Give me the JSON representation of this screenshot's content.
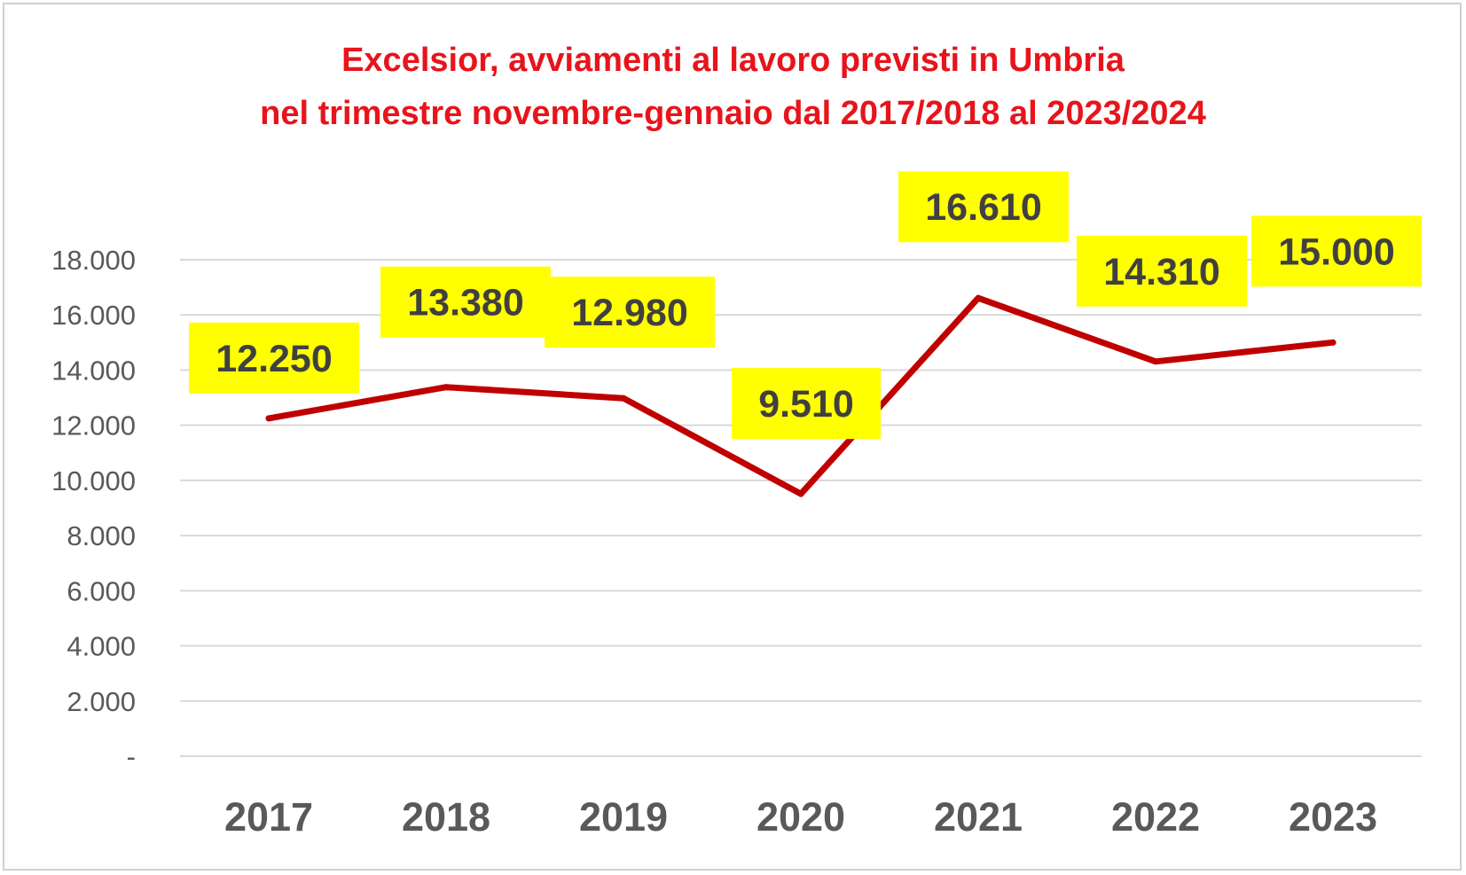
{
  "chart_data": {
    "type": "line",
    "title_lines": [
      "Excelsior, avviamenti al lavoro previsti in Umbria",
      "nel trimestre novembre-gennaio dal 2017/2018 al 2023/2024"
    ],
    "categories": [
      "2017",
      "2018",
      "2019",
      "2020",
      "2021",
      "2022",
      "2023"
    ],
    "values": [
      12250,
      13380,
      12980,
      9510,
      16610,
      14310,
      15000
    ],
    "data_labels": [
      "12.250",
      "13.380",
      "12.980",
      "9.510",
      "16.610",
      "14.310",
      "15.000"
    ],
    "y_ticks": [
      {
        "value": 0,
        "label": "-"
      },
      {
        "value": 2000,
        "label": "2.000"
      },
      {
        "value": 4000,
        "label": "4.000"
      },
      {
        "value": 6000,
        "label": "6.000"
      },
      {
        "value": 8000,
        "label": "8.000"
      },
      {
        "value": 10000,
        "label": "10.000"
      },
      {
        "value": 12000,
        "label": "12.000"
      },
      {
        "value": 14000,
        "label": "14.000"
      },
      {
        "value": 16000,
        "label": "16.000"
      },
      {
        "value": 18000,
        "label": "18.000"
      }
    ],
    "ylim": [
      0,
      18000
    ],
    "xlabel": "",
    "ylabel": "",
    "grid": true,
    "legend": "none",
    "colors": {
      "line": "#c00000",
      "title": "#e8141b",
      "label_background": "#ffff00",
      "label_text": "#404040",
      "axis_text": "#595959",
      "gridline": "#d9d9d9"
    }
  }
}
